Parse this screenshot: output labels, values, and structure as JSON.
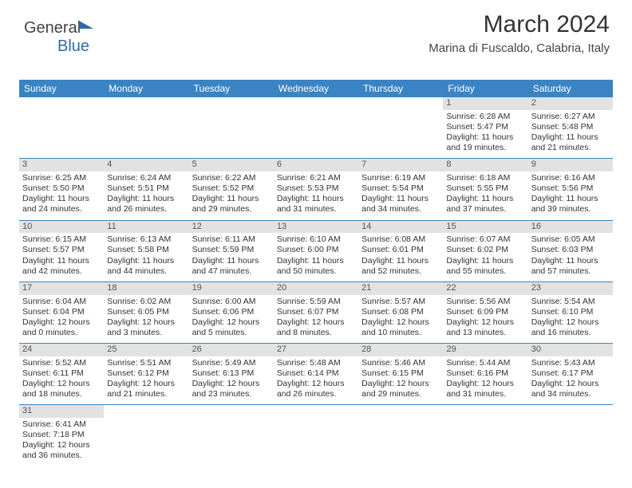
{
  "logo": {
    "part1": "General",
    "part2": "Blue"
  },
  "title": "March 2024",
  "location": "Marina di Fuscaldo, Calabria, Italy",
  "colors": {
    "header_bg": "#3b84c4",
    "daynum_bg": "#e2e2e2",
    "border": "#3b84c4"
  },
  "weekdays": [
    "Sunday",
    "Monday",
    "Tuesday",
    "Wednesday",
    "Thursday",
    "Friday",
    "Saturday"
  ],
  "weeks": [
    [
      {
        "blank": true
      },
      {
        "blank": true
      },
      {
        "blank": true
      },
      {
        "blank": true
      },
      {
        "blank": true
      },
      {
        "n": "1",
        "sr": "Sunrise: 6:28 AM",
        "ss": "Sunset: 5:47 PM",
        "d1": "Daylight: 11 hours",
        "d2": "and 19 minutes."
      },
      {
        "n": "2",
        "sr": "Sunrise: 6:27 AM",
        "ss": "Sunset: 5:48 PM",
        "d1": "Daylight: 11 hours",
        "d2": "and 21 minutes."
      }
    ],
    [
      {
        "n": "3",
        "sr": "Sunrise: 6:25 AM",
        "ss": "Sunset: 5:50 PM",
        "d1": "Daylight: 11 hours",
        "d2": "and 24 minutes."
      },
      {
        "n": "4",
        "sr": "Sunrise: 6:24 AM",
        "ss": "Sunset: 5:51 PM",
        "d1": "Daylight: 11 hours",
        "d2": "and 26 minutes."
      },
      {
        "n": "5",
        "sr": "Sunrise: 6:22 AM",
        "ss": "Sunset: 5:52 PM",
        "d1": "Daylight: 11 hours",
        "d2": "and 29 minutes."
      },
      {
        "n": "6",
        "sr": "Sunrise: 6:21 AM",
        "ss": "Sunset: 5:53 PM",
        "d1": "Daylight: 11 hours",
        "d2": "and 31 minutes."
      },
      {
        "n": "7",
        "sr": "Sunrise: 6:19 AM",
        "ss": "Sunset: 5:54 PM",
        "d1": "Daylight: 11 hours",
        "d2": "and 34 minutes."
      },
      {
        "n": "8",
        "sr": "Sunrise: 6:18 AM",
        "ss": "Sunset: 5:55 PM",
        "d1": "Daylight: 11 hours",
        "d2": "and 37 minutes."
      },
      {
        "n": "9",
        "sr": "Sunrise: 6:16 AM",
        "ss": "Sunset: 5:56 PM",
        "d1": "Daylight: 11 hours",
        "d2": "and 39 minutes."
      }
    ],
    [
      {
        "n": "10",
        "sr": "Sunrise: 6:15 AM",
        "ss": "Sunset: 5:57 PM",
        "d1": "Daylight: 11 hours",
        "d2": "and 42 minutes."
      },
      {
        "n": "11",
        "sr": "Sunrise: 6:13 AM",
        "ss": "Sunset: 5:58 PM",
        "d1": "Daylight: 11 hours",
        "d2": "and 44 minutes."
      },
      {
        "n": "12",
        "sr": "Sunrise: 6:11 AM",
        "ss": "Sunset: 5:59 PM",
        "d1": "Daylight: 11 hours",
        "d2": "and 47 minutes."
      },
      {
        "n": "13",
        "sr": "Sunrise: 6:10 AM",
        "ss": "Sunset: 6:00 PM",
        "d1": "Daylight: 11 hours",
        "d2": "and 50 minutes."
      },
      {
        "n": "14",
        "sr": "Sunrise: 6:08 AM",
        "ss": "Sunset: 6:01 PM",
        "d1": "Daylight: 11 hours",
        "d2": "and 52 minutes."
      },
      {
        "n": "15",
        "sr": "Sunrise: 6:07 AM",
        "ss": "Sunset: 6:02 PM",
        "d1": "Daylight: 11 hours",
        "d2": "and 55 minutes."
      },
      {
        "n": "16",
        "sr": "Sunrise: 6:05 AM",
        "ss": "Sunset: 6:03 PM",
        "d1": "Daylight: 11 hours",
        "d2": "and 57 minutes."
      }
    ],
    [
      {
        "n": "17",
        "sr": "Sunrise: 6:04 AM",
        "ss": "Sunset: 6:04 PM",
        "d1": "Daylight: 12 hours",
        "d2": "and 0 minutes."
      },
      {
        "n": "18",
        "sr": "Sunrise: 6:02 AM",
        "ss": "Sunset: 6:05 PM",
        "d1": "Daylight: 12 hours",
        "d2": "and 3 minutes."
      },
      {
        "n": "19",
        "sr": "Sunrise: 6:00 AM",
        "ss": "Sunset: 6:06 PM",
        "d1": "Daylight: 12 hours",
        "d2": "and 5 minutes."
      },
      {
        "n": "20",
        "sr": "Sunrise: 5:59 AM",
        "ss": "Sunset: 6:07 PM",
        "d1": "Daylight: 12 hours",
        "d2": "and 8 minutes."
      },
      {
        "n": "21",
        "sr": "Sunrise: 5:57 AM",
        "ss": "Sunset: 6:08 PM",
        "d1": "Daylight: 12 hours",
        "d2": "and 10 minutes."
      },
      {
        "n": "22",
        "sr": "Sunrise: 5:56 AM",
        "ss": "Sunset: 6:09 PM",
        "d1": "Daylight: 12 hours",
        "d2": "and 13 minutes."
      },
      {
        "n": "23",
        "sr": "Sunrise: 5:54 AM",
        "ss": "Sunset: 6:10 PM",
        "d1": "Daylight: 12 hours",
        "d2": "and 16 minutes."
      }
    ],
    [
      {
        "n": "24",
        "sr": "Sunrise: 5:52 AM",
        "ss": "Sunset: 6:11 PM",
        "d1": "Daylight: 12 hours",
        "d2": "and 18 minutes."
      },
      {
        "n": "25",
        "sr": "Sunrise: 5:51 AM",
        "ss": "Sunset: 6:12 PM",
        "d1": "Daylight: 12 hours",
        "d2": "and 21 minutes."
      },
      {
        "n": "26",
        "sr": "Sunrise: 5:49 AM",
        "ss": "Sunset: 6:13 PM",
        "d1": "Daylight: 12 hours",
        "d2": "and 23 minutes."
      },
      {
        "n": "27",
        "sr": "Sunrise: 5:48 AM",
        "ss": "Sunset: 6:14 PM",
        "d1": "Daylight: 12 hours",
        "d2": "and 26 minutes."
      },
      {
        "n": "28",
        "sr": "Sunrise: 5:46 AM",
        "ss": "Sunset: 6:15 PM",
        "d1": "Daylight: 12 hours",
        "d2": "and 29 minutes."
      },
      {
        "n": "29",
        "sr": "Sunrise: 5:44 AM",
        "ss": "Sunset: 6:16 PM",
        "d1": "Daylight: 12 hours",
        "d2": "and 31 minutes."
      },
      {
        "n": "30",
        "sr": "Sunrise: 5:43 AM",
        "ss": "Sunset: 6:17 PM",
        "d1": "Daylight: 12 hours",
        "d2": "and 34 minutes."
      }
    ],
    [
      {
        "n": "31",
        "sr": "Sunrise: 6:41 AM",
        "ss": "Sunset: 7:18 PM",
        "d1": "Daylight: 12 hours",
        "d2": "and 36 minutes."
      },
      {
        "blank": true
      },
      {
        "blank": true
      },
      {
        "blank": true
      },
      {
        "blank": true
      },
      {
        "blank": true
      },
      {
        "blank": true
      }
    ]
  ]
}
